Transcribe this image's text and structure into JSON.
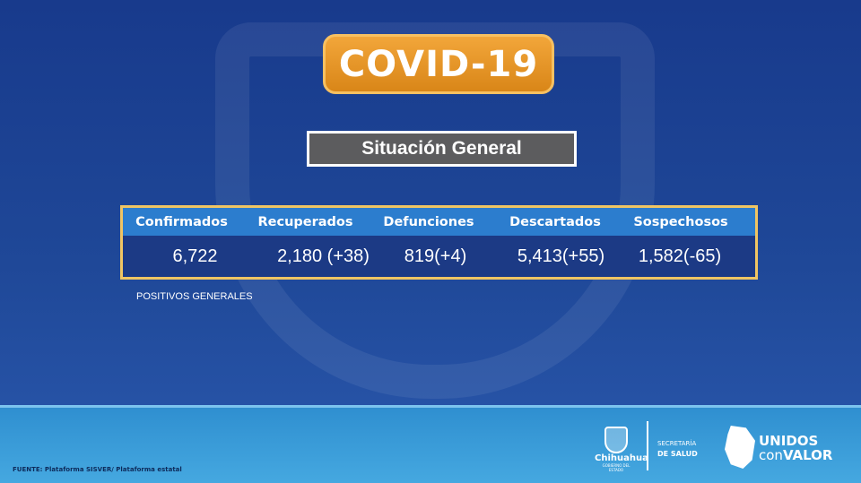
{
  "title": "COVID-19",
  "subtitle": "Situación General",
  "table": {
    "headers": [
      "Confirmados",
      "Recuperados",
      "Defunciones",
      "Descartados",
      "Sospechosos"
    ],
    "values": [
      "6,722",
      "2,180 (+38)",
      "819(+4)",
      "5,413(+55)",
      "1,582(-65)"
    ]
  },
  "note": "POSITIVOS GENERALES",
  "footer": {
    "source": "FUENTE: Plataforma SISVER/ Plataforma estatal",
    "logo_chihuahua": "Chihuahua",
    "logo_gobierno": "GOBIERNO DEL ESTADO",
    "secretaria_line1": "SECRETARÍA",
    "secretaria_line2": "DE SALUD",
    "unidos_line1": "UNIDOS",
    "unidos_con": "con",
    "unidos_valor": "VALOR"
  },
  "colors": {
    "accent_orange": "#e39427",
    "table_border": "#f0c563",
    "header_blue": "#2c7dce",
    "background": "#1f4898"
  }
}
